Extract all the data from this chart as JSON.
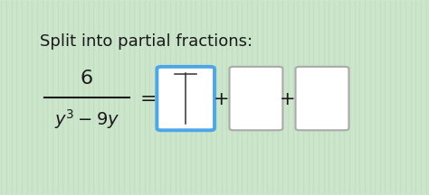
{
  "title": "Split into partial fractions:",
  "text_color": "#1a1a1a",
  "title_fontsize": 13,
  "math_fontsize": 14,
  "box1_edge_color": "#4da6e8",
  "box2_edge_color": "#aaaaaa",
  "box3_edge_color": "#aaaaaa",
  "bg_color": "#cce5cc",
  "stripe_color": "#b8ddb8",
  "figsize": [
    4.74,
    2.16
  ],
  "dpi": 100
}
